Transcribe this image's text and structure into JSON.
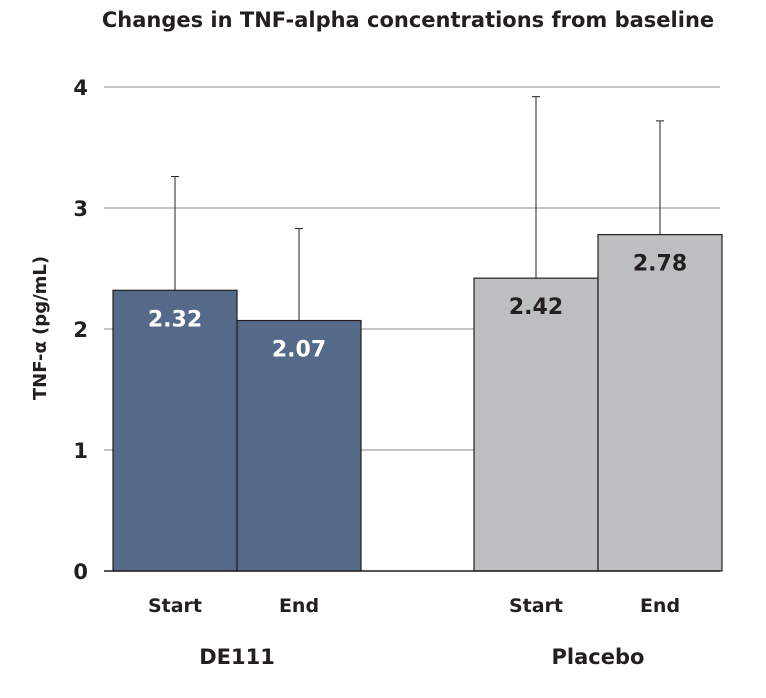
{
  "chart_data": {
    "type": "bar",
    "title": "Changes in TNF-alpha concentrations from baseline",
    "ylabel": "TNF-α (pg/mL)",
    "xlabel": "",
    "ylim": [
      0,
      4
    ],
    "yticks": [
      0,
      1,
      2,
      3,
      4
    ],
    "grid": true,
    "groups": [
      {
        "name": "DE111",
        "color": "#546a88",
        "label_color": "#ffffff",
        "bars": [
          {
            "category": "Start",
            "value": 2.32,
            "label": "2.32",
            "error_upper": 3.26
          },
          {
            "category": "End",
            "value": 2.07,
            "label": "2.07",
            "error_upper": 2.83
          }
        ]
      },
      {
        "name": "Placebo",
        "color": "#bcbec0",
        "label_color": "#231f20",
        "bars": [
          {
            "category": "Start",
            "value": 2.42,
            "label": "2.42",
            "error_upper": 3.92
          },
          {
            "category": "End",
            "value": 2.78,
            "label": "2.78",
            "error_upper": 3.72
          }
        ]
      }
    ]
  }
}
